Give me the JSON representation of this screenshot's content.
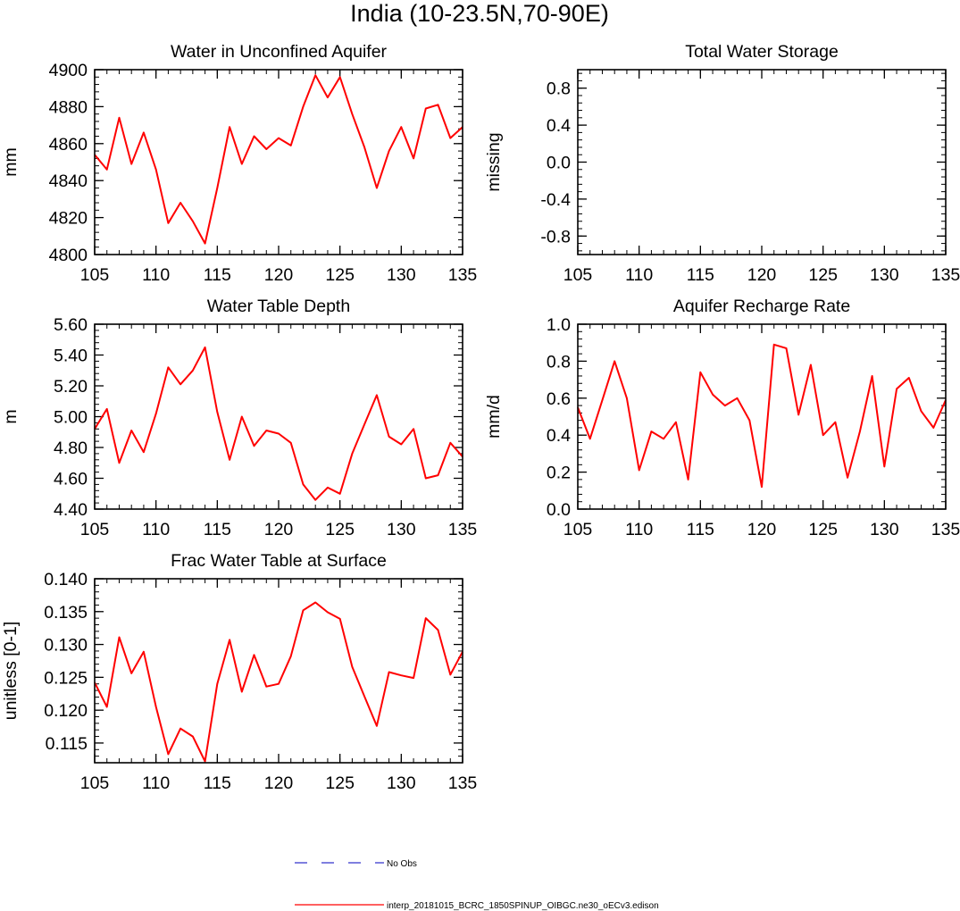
{
  "figure": {
    "title": "India (10-23.5N,70-90E)",
    "legend": [
      {
        "label": "No Obs",
        "color": "#3333cc",
        "style": "dashed"
      },
      {
        "label": "interp_20181015_BCRC_1850SPINUP_OIBGC.ne30_oECv3.edison",
        "color": "#ff0000",
        "style": "solid"
      }
    ]
  },
  "chart_data": [
    {
      "type": "line",
      "title": "Water in Unconfined Aquifer",
      "ylabel": "mm",
      "xlim": [
        105,
        135
      ],
      "ylim": [
        4800,
        4900
      ],
      "xticks": [
        "105",
        "110",
        "115",
        "120",
        "125",
        "130",
        "135"
      ],
      "yticks": [
        "4800",
        "4820",
        "4840",
        "4860",
        "4880",
        "4900"
      ],
      "series": [
        {
          "color": "#ff0000",
          "x": [
            105,
            106,
            107,
            108,
            109,
            110,
            111,
            112,
            113,
            114,
            115,
            116,
            117,
            118,
            119,
            120,
            121,
            122,
            123,
            124,
            125,
            126,
            127,
            128,
            129,
            130,
            131,
            132,
            133,
            134,
            135
          ],
          "values": [
            4854,
            4846,
            4874,
            4849,
            4866,
            4846,
            4817,
            4828,
            4818,
            4806,
            4836,
            4869,
            4849,
            4864,
            4857,
            4863,
            4859,
            4880,
            4897,
            4885,
            4896,
            4876,
            4858,
            4836,
            4856,
            4869,
            4852,
            4879,
            4881,
            4863,
            4869
          ]
        }
      ]
    },
    {
      "type": "line",
      "title": "Total Water Storage",
      "ylabel": "missing",
      "xlim": [
        105,
        135
      ],
      "ylim": [
        -1,
        1
      ],
      "xticks": [
        "105",
        "110",
        "115",
        "120",
        "125",
        "130",
        "135"
      ],
      "yticks": [
        "-0.8",
        "-0.4",
        "0.0",
        "0.4",
        "0.8"
      ],
      "series": []
    },
    {
      "type": "line",
      "title": "Water Table Depth",
      "ylabel": "m",
      "xlim": [
        105,
        135
      ],
      "ylim": [
        4.4,
        5.6
      ],
      "xticks": [
        "105",
        "110",
        "115",
        "120",
        "125",
        "130",
        "135"
      ],
      "yticks": [
        "4.40",
        "4.60",
        "4.80",
        "5.00",
        "5.20",
        "5.40",
        "5.60"
      ],
      "series": [
        {
          "color": "#ff0000",
          "x": [
            105,
            106,
            107,
            108,
            109,
            110,
            111,
            112,
            113,
            114,
            115,
            116,
            117,
            118,
            119,
            120,
            121,
            122,
            123,
            124,
            125,
            126,
            127,
            128,
            129,
            130,
            131,
            132,
            133,
            134,
            135
          ],
          "values": [
            4.92,
            5.05,
            4.7,
            4.91,
            4.77,
            5.02,
            5.32,
            5.21,
            5.3,
            5.45,
            5.03,
            4.72,
            5.0,
            4.81,
            4.91,
            4.89,
            4.83,
            4.56,
            4.46,
            4.54,
            4.5,
            4.76,
            4.95,
            5.14,
            4.87,
            4.82,
            4.92,
            4.6,
            4.62,
            4.83,
            4.74
          ]
        }
      ]
    },
    {
      "type": "line",
      "title": "Aquifer Recharge Rate",
      "ylabel": "mm/d",
      "xlim": [
        105,
        135
      ],
      "ylim": [
        0.0,
        1.0
      ],
      "xticks": [
        "105",
        "110",
        "115",
        "120",
        "125",
        "130",
        "135"
      ],
      "yticks": [
        "0.0",
        "0.2",
        "0.4",
        "0.6",
        "0.8",
        "1.0"
      ],
      "series": [
        {
          "color": "#ff0000",
          "x": [
            105,
            106,
            107,
            108,
            109,
            110,
            111,
            112,
            113,
            114,
            115,
            116,
            117,
            118,
            119,
            120,
            121,
            122,
            123,
            124,
            125,
            126,
            127,
            128,
            129,
            130,
            131,
            132,
            133,
            134,
            135
          ],
          "values": [
            0.55,
            0.38,
            0.59,
            0.8,
            0.6,
            0.21,
            0.42,
            0.38,
            0.47,
            0.16,
            0.74,
            0.62,
            0.56,
            0.6,
            0.48,
            0.12,
            0.89,
            0.87,
            0.51,
            0.78,
            0.4,
            0.47,
            0.17,
            0.42,
            0.72,
            0.23,
            0.65,
            0.71,
            0.53,
            0.44,
            0.59
          ]
        }
      ]
    },
    {
      "type": "line",
      "title": "Frac Water Table at Surface",
      "ylabel": "unitless [0-1]",
      "xlim": [
        105,
        135
      ],
      "ylim": [
        0.112,
        0.14
      ],
      "xticks": [
        "105",
        "110",
        "115",
        "120",
        "125",
        "130",
        "135"
      ],
      "yticks": [
        "0.115",
        "0.120",
        "0.125",
        "0.130",
        "0.135",
        "0.140"
      ],
      "series": [
        {
          "color": "#ff0000",
          "x": [
            105,
            106,
            107,
            108,
            109,
            110,
            111,
            112,
            113,
            114,
            115,
            116,
            117,
            118,
            119,
            120,
            121,
            122,
            123,
            124,
            125,
            126,
            127,
            128,
            129,
            130,
            131,
            132,
            133,
            134,
            135
          ],
          "values": [
            0.1242,
            0.1205,
            0.1311,
            0.1256,
            0.1289,
            0.1205,
            0.1133,
            0.1172,
            0.116,
            0.1122,
            0.124,
            0.1307,
            0.1228,
            0.1284,
            0.1236,
            0.124,
            0.1282,
            0.1352,
            0.1364,
            0.1349,
            0.1339,
            0.1266,
            0.1221,
            0.1176,
            0.1258,
            0.1253,
            0.1249,
            0.134,
            0.1322,
            0.1254,
            0.1289
          ]
        }
      ]
    }
  ]
}
